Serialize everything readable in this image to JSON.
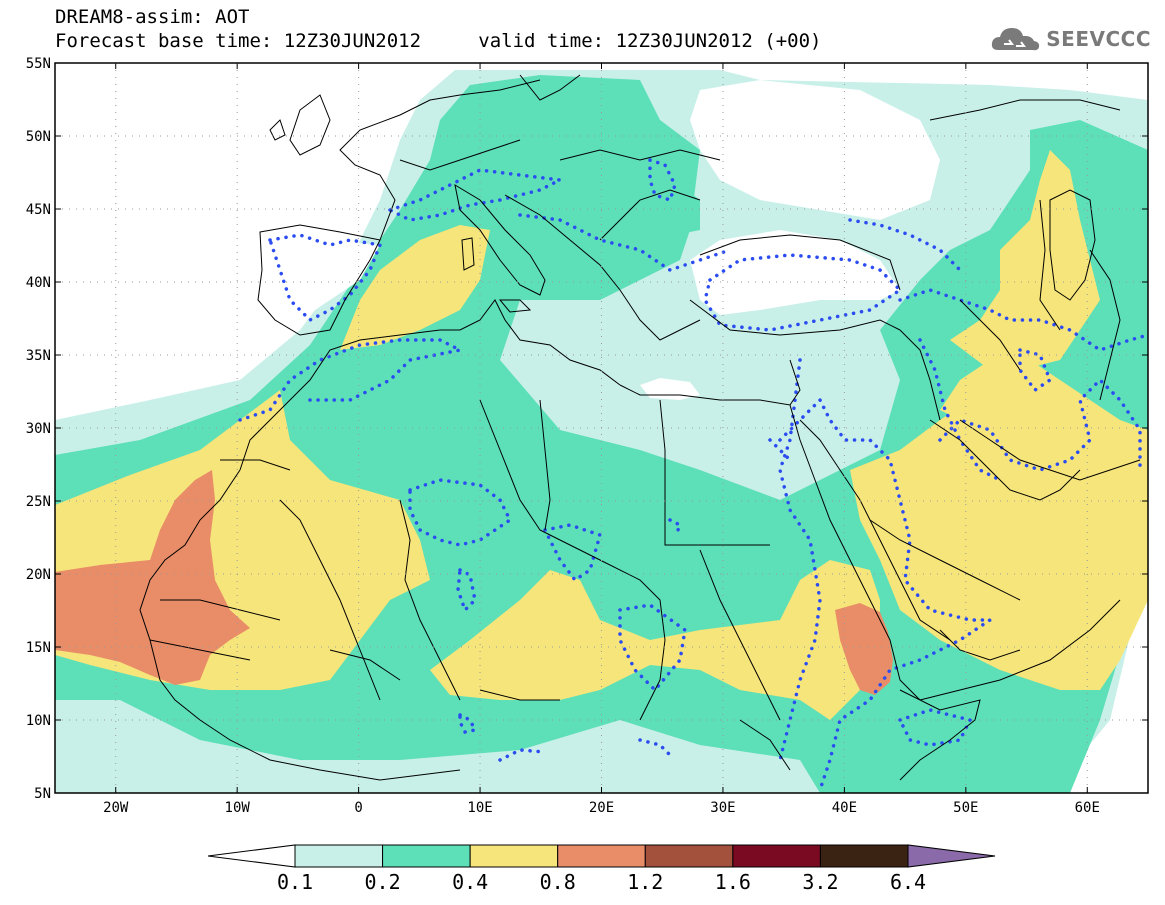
{
  "header": {
    "title_line1": "DREAM8-assim: AOT",
    "base_time_label": "Forecast base time:",
    "base_time": "12Z30JUN2012",
    "valid_time_label": "valid time:",
    "valid_time": "12Z30JUN2012 (+00)"
  },
  "logo": {
    "text": "SEEVCCC",
    "icon": "cloud-logo-icon"
  },
  "axes": {
    "lat_labels": [
      "55N",
      "50N",
      "45N",
      "40N",
      "35N",
      "30N",
      "25N",
      "20N",
      "15N",
      "10N",
      "5N"
    ],
    "lon_labels": [
      "20W",
      "10W",
      "0",
      "10E",
      "20E",
      "30E",
      "40E",
      "50E",
      "60E"
    ]
  },
  "colorbar": {
    "labels": [
      "0.1",
      "0.2",
      "0.4",
      "0.8",
      "1.2",
      "1.6",
      "3.2",
      "6.4"
    ],
    "colors": [
      "#ffffff",
      "#c8f0e8",
      "#5ddfb8",
      "#f6e57a",
      "#e98d68",
      "#a3503d",
      "#7a0a22",
      "#3b2313",
      "#8a6aa8"
    ]
  },
  "fill_colors": {
    "light": "#c8f0e8",
    "green": "#5ddfb8",
    "yellow": "#f6e57a",
    "orange": "#e98d68",
    "brown": "#a3503d"
  }
}
